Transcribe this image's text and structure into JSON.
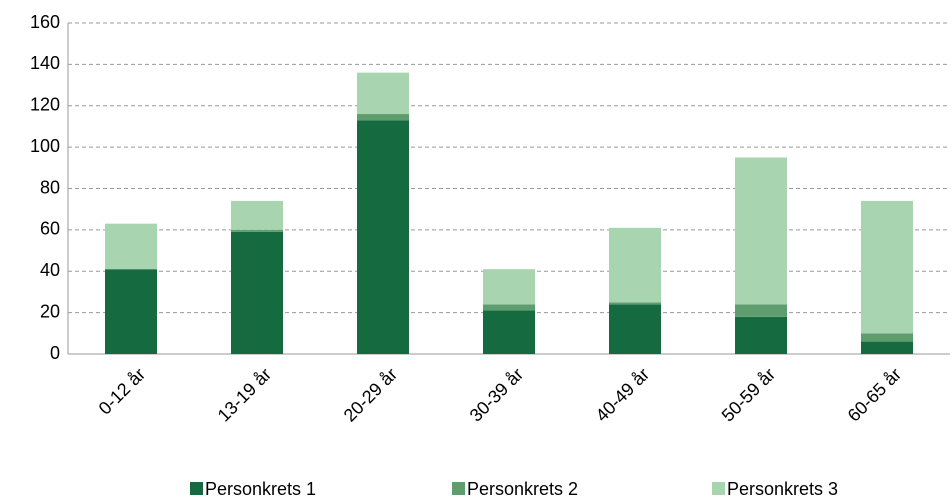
{
  "chart_data": {
    "type": "stacked_bar",
    "categories": [
      "0-12 år",
      "13-19 år",
      "20-29 år",
      "30-39 år",
      "40-49 år",
      "50-59 år",
      "60-65 år"
    ],
    "series": [
      {
        "name": "Personkrets 1",
        "color": "#156b3f",
        "values": [
          41,
          59,
          113,
          21,
          24,
          18,
          6
        ]
      },
      {
        "name": "Personkrets 2",
        "color": "#5e9e6e",
        "values": [
          0,
          1,
          3,
          3,
          1,
          6,
          4
        ]
      },
      {
        "name": "Personkrets 3",
        "color": "#a9d4b0",
        "values": [
          22,
          14,
          20,
          17,
          36,
          71,
          64
        ]
      }
    ],
    "ylim": [
      0,
      160
    ],
    "yticks": [
      0,
      20,
      40,
      60,
      80,
      100,
      120,
      140,
      160
    ],
    "grid": true,
    "legend": "bottom"
  }
}
